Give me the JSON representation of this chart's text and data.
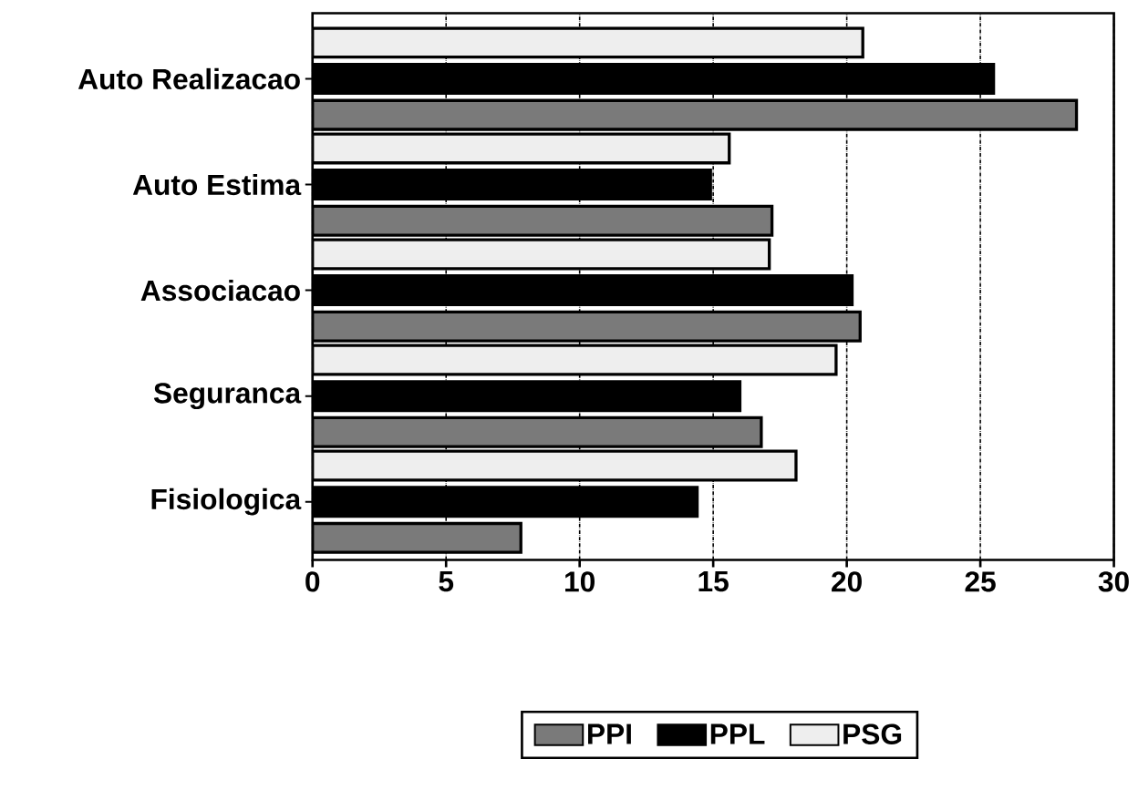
{
  "chart_data": {
    "type": "bar",
    "orientation": "horizontal",
    "categories": [
      "Auto Realizacao",
      "Auto Estima",
      "Associacao",
      "Seguranca",
      "Fisiologica"
    ],
    "series": [
      {
        "name": "PPI",
        "color": "#7a7a7a",
        "values": [
          28.6,
          17.2,
          20.5,
          16.8,
          7.8
        ]
      },
      {
        "name": "PPL",
        "color": "#000000",
        "values": [
          25.5,
          14.9,
          20.2,
          16.0,
          14.4
        ]
      },
      {
        "name": "PSG",
        "color": "#eeeeee",
        "values": [
          20.6,
          15.6,
          17.1,
          19.6,
          18.1
        ]
      }
    ],
    "xlim": [
      0,
      30
    ],
    "xticks": [
      0,
      5,
      10,
      15,
      20,
      25,
      30
    ],
    "grid": "x",
    "legend": "bottom"
  }
}
